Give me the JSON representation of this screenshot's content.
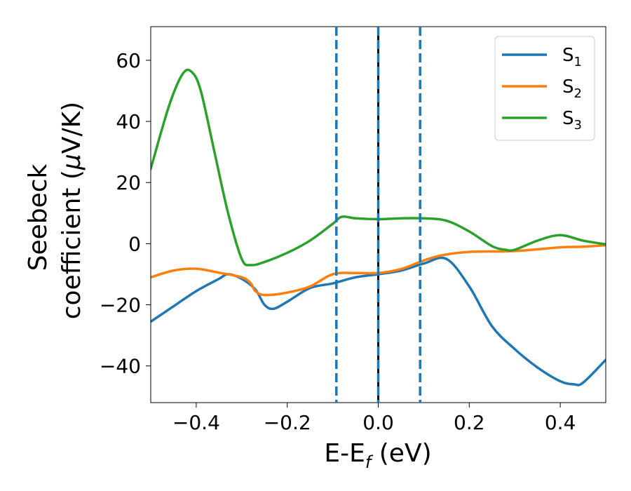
{
  "chart_data": {
    "type": "line",
    "xlabel": {
      "main": "E-E",
      "sub": "f",
      "rest": " (eV)"
    },
    "ylabel": {
      "line1": "Seebeck",
      "line2_prefix": "coefficient  (",
      "mu": "μ",
      "line2_suffix": "V/K)"
    },
    "xlim": [
      -0.5,
      0.5
    ],
    "ylim": [
      -52,
      71
    ],
    "xticks": [
      -0.4,
      -0.2,
      0.0,
      0.2,
      0.4
    ],
    "xtick_labels": [
      "−0.4",
      "−0.2",
      "0.0",
      "0.2",
      "0.4"
    ],
    "yticks": [
      -40,
      -20,
      0,
      20,
      40,
      60
    ],
    "ytick_labels": [
      "−40",
      "−20",
      "0",
      "20",
      "40",
      "60"
    ],
    "grid": false,
    "legend_position": "top-right",
    "vlines": [
      {
        "x": -0.0,
        "style": "solid",
        "color": "#000000"
      },
      {
        "x": -0.092,
        "style": "dashed",
        "color": "#1f77b4"
      },
      {
        "x": 0.0,
        "style": "dashed",
        "color": "#1f77b4"
      },
      {
        "x": 0.092,
        "style": "dashed",
        "color": "#1f77b4"
      }
    ],
    "series": [
      {
        "name": "S",
        "sub": "1",
        "color": "#1f77b4",
        "x": [
          -0.5,
          -0.45,
          -0.4,
          -0.35,
          -0.33,
          -0.3,
          -0.27,
          -0.25,
          -0.23,
          -0.2,
          -0.15,
          -0.1,
          -0.05,
          0.0,
          0.05,
          0.1,
          0.15,
          0.2,
          0.25,
          0.3,
          0.35,
          0.4,
          0.43,
          0.45,
          0.5
        ],
        "y": [
          -25.5,
          -20.5,
          -15.5,
          -11.5,
          -10,
          -11.5,
          -15,
          -20,
          -21.3,
          -19,
          -14.5,
          -13,
          -11,
          -10,
          -8.8,
          -6.5,
          -5,
          -14,
          -27,
          -34.5,
          -40.5,
          -45,
          -46,
          -45.5,
          -38
        ]
      },
      {
        "name": "S",
        "sub": "2",
        "color": "#ff7f0e",
        "x": [
          -0.5,
          -0.45,
          -0.4,
          -0.35,
          -0.3,
          -0.28,
          -0.27,
          -0.25,
          -0.2,
          -0.15,
          -0.1,
          -0.05,
          0.0,
          0.05,
          0.1,
          0.14,
          0.2,
          0.3,
          0.4,
          0.45,
          0.5
        ],
        "y": [
          -11,
          -8.8,
          -8.2,
          -9.5,
          -11,
          -13,
          -15.5,
          -16.8,
          -16,
          -14,
          -10,
          -9.6,
          -9.6,
          -8.3,
          -5.5,
          -3.8,
          -2.7,
          -2.4,
          -1.2,
          -1,
          -0.5
        ]
      },
      {
        "name": "S",
        "sub": "3",
        "color": "#2ca02c",
        "x": [
          -0.5,
          -0.46,
          -0.43,
          -0.41,
          -0.39,
          -0.36,
          -0.33,
          -0.3,
          -0.28,
          -0.25,
          -0.2,
          -0.15,
          -0.1,
          -0.08,
          -0.05,
          0.0,
          0.05,
          0.1,
          0.15,
          0.2,
          0.25,
          0.28,
          0.3,
          0.35,
          0.4,
          0.45,
          0.5
        ],
        "y": [
          24.5,
          45,
          55.5,
          56.2,
          50,
          30,
          10,
          -5,
          -7,
          -6,
          -3,
          1,
          6.5,
          8.8,
          8.3,
          8,
          8.3,
          8.3,
          7.5,
          4,
          -0.8,
          -2,
          -2,
          1,
          2.8,
          1,
          -0.2
        ]
      }
    ]
  }
}
